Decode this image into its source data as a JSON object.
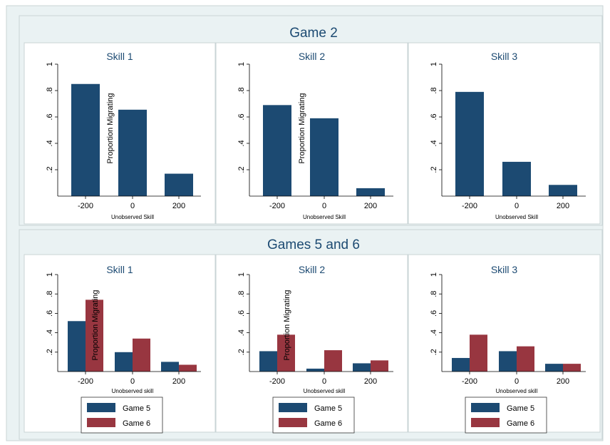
{
  "colors": {
    "background": "#eaf2f3",
    "border": "#c9d4d6",
    "panel": "#ffffff",
    "game5": "#1c4a72",
    "game6": "#983640",
    "axis": "#000000"
  },
  "chart_data": [
    {
      "type": "bar",
      "group": "Game 2",
      "title": "Skill 1",
      "categories": [
        "-200",
        "0",
        "200"
      ],
      "series": [
        {
          "values": [
            0.85,
            0.655,
            0.17
          ]
        }
      ],
      "xlabel": "Unobserved Skill",
      "ylabel": "Proportion Migrating",
      "ylim": [
        0,
        1
      ],
      "yticks": [
        ".2",
        ".4",
        ".6",
        ".8",
        "1"
      ]
    },
    {
      "type": "bar",
      "group": "Game 2",
      "title": "Skill 2",
      "categories": [
        "-200",
        "0",
        "200"
      ],
      "series": [
        {
          "values": [
            0.69,
            0.59,
            0.06
          ]
        }
      ],
      "xlabel": "Unobserved Skill",
      "ylabel": "Proportion Migrating",
      "ylim": [
        0,
        1
      ],
      "yticks": [
        ".2",
        ".4",
        ".6",
        ".8",
        "1"
      ]
    },
    {
      "type": "bar",
      "group": "Game 2",
      "title": "Skill 3",
      "categories": [
        "-200",
        "0",
        "200"
      ],
      "series": [
        {
          "values": [
            0.79,
            0.26,
            0.085
          ]
        }
      ],
      "xlabel": "Unobserved Skill",
      "ylabel": "",
      "ylim": [
        0,
        1
      ],
      "yticks": [
        ".2",
        ".4",
        ".6",
        ".8",
        "1"
      ]
    },
    {
      "type": "bar",
      "group": "Games 5 and 6",
      "title": "Skill 1",
      "categories": [
        "-200",
        "0",
        "200"
      ],
      "series": [
        {
          "name": "Game 5",
          "values": [
            0.52,
            0.2,
            0.1
          ]
        },
        {
          "name": "Game 6",
          "values": [
            0.74,
            0.34,
            0.07
          ]
        }
      ],
      "xlabel": "Unobserved skill",
      "ylabel": "Proportion Migrating",
      "ylim": [
        0,
        1
      ],
      "yticks": [
        ".2",
        ".4",
        ".6",
        ".8",
        "1"
      ]
    },
    {
      "type": "bar",
      "group": "Games 5 and 6",
      "title": "Skill 2",
      "categories": [
        "-200",
        "0",
        "200"
      ],
      "series": [
        {
          "name": "Game 5",
          "values": [
            0.21,
            0.03,
            0.085
          ]
        },
        {
          "name": "Game 6",
          "values": [
            0.38,
            0.22,
            0.115
          ]
        }
      ],
      "xlabel": "Unobserved skill",
      "ylabel": "Proportion Migrating",
      "ylim": [
        0,
        1
      ],
      "yticks": [
        ".2",
        ".4",
        ".6",
        ".8",
        "1"
      ]
    },
    {
      "type": "bar",
      "group": "Games 5 and 6",
      "title": "Skill 3",
      "categories": [
        "-200",
        "0",
        "200"
      ],
      "series": [
        {
          "name": "Game 5",
          "values": [
            0.14,
            0.21,
            0.08
          ]
        },
        {
          "name": "Game 6",
          "values": [
            0.38,
            0.26,
            0.08
          ]
        }
      ],
      "xlabel": "Unobserved skill",
      "ylabel": "",
      "ylim": [
        0,
        1
      ],
      "yticks": [
        ".2",
        ".4",
        ".6",
        ".8",
        "1"
      ]
    }
  ],
  "groups": [
    {
      "title": "Game 2"
    },
    {
      "title": "Games 5 and 6"
    }
  ]
}
